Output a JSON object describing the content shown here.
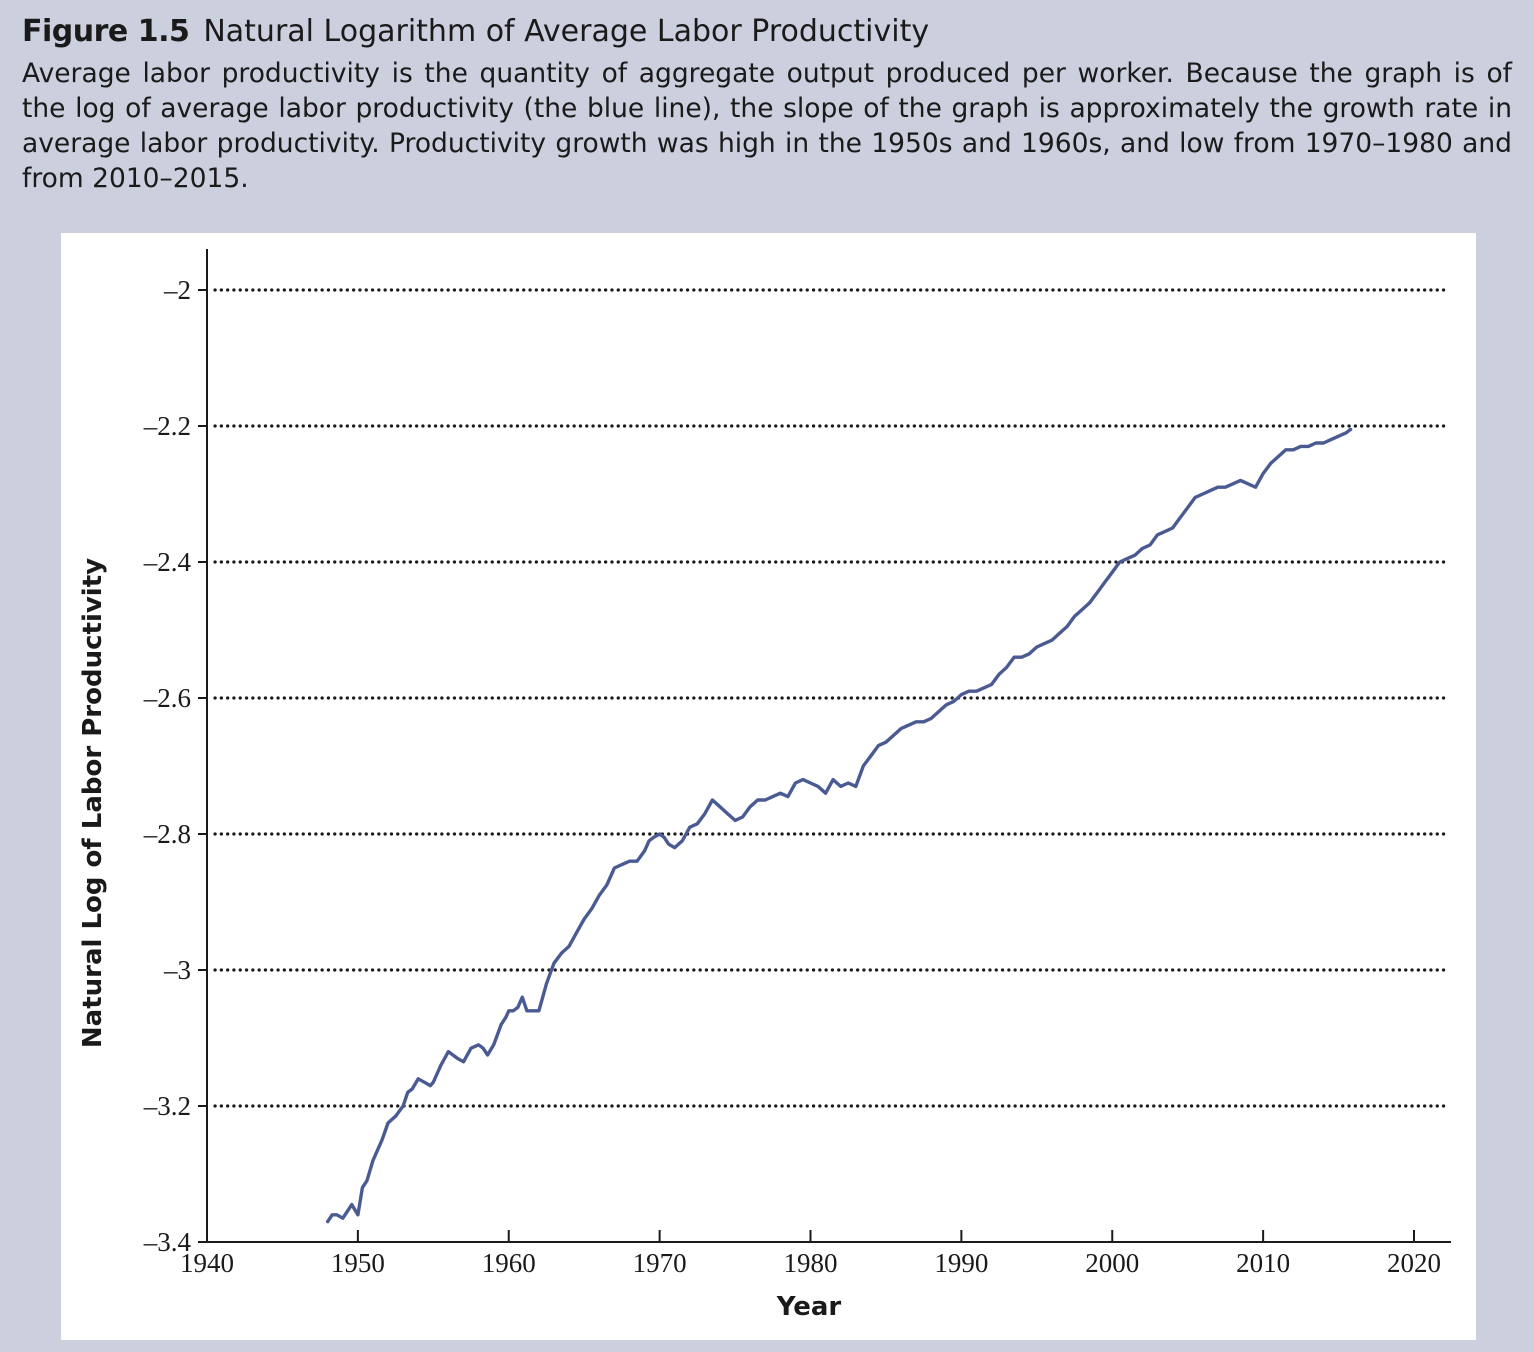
{
  "figure": {
    "label": "Figure 1.5",
    "title": "Natural Logarithm of Average Labor Productivity",
    "caption": "Average labor productivity is the quantity of aggregate output produced per worker. Because the graph is of the log of average labor productivity (the blue line), the slope of the graph is approximately the growth rate in average labor productivity. Productivity growth was high in the 1950s and 1960s, and low from 1970–1980 and from 2010–2015."
  },
  "chart_data": {
    "type": "line",
    "xlabel": "Year",
    "ylabel": "Natural Log of Labor Productivity",
    "xlim": [
      1940,
      2020
    ],
    "ylim": [
      -3.4,
      -1.95
    ],
    "xticks": [
      1940,
      1950,
      1960,
      1970,
      1980,
      1990,
      2000,
      2010,
      2020
    ],
    "xtick_labels": [
      "1940",
      "1950",
      "1960",
      "1970",
      "1980",
      "1990",
      "2000",
      "2010",
      "2020"
    ],
    "yticks": [
      -2,
      -2.2,
      -2.4,
      -2.6,
      -2.8,
      -3,
      -3.2,
      -3.4
    ],
    "ytick_labels": [
      "–2",
      "–2.2",
      "–2.4",
      "–2.6",
      "–2.8",
      "–3",
      "–3.2",
      "–3.4"
    ],
    "grid": "horizontal dotted",
    "line_color": "#4a5a92",
    "x": [
      1948.0,
      1948.3,
      1948.6,
      1949.0,
      1949.3,
      1949.6,
      1950.0,
      1950.3,
      1950.6,
      1951.0,
      1951.3,
      1951.6,
      1952.0,
      1952.5,
      1953.0,
      1953.3,
      1953.6,
      1954.0,
      1954.4,
      1954.8,
      1955.0,
      1955.5,
      1956.0,
      1956.3,
      1956.6,
      1957.0,
      1957.5,
      1958.0,
      1958.3,
      1958.6,
      1959.0,
      1959.5,
      1959.8,
      1960.0,
      1960.3,
      1960.6,
      1960.9,
      1961.2,
      1961.6,
      1962.0,
      1962.5,
      1963.0,
      1963.5,
      1964.0,
      1964.5,
      1965.0,
      1965.5,
      1966.0,
      1966.5,
      1967.0,
      1967.5,
      1968.0,
      1968.5,
      1969.0,
      1969.3,
      1969.6,
      1970.0,
      1970.3,
      1970.6,
      1971.0,
      1971.5,
      1972.0,
      1972.5,
      1973.0,
      1973.5,
      1974.0,
      1974.5,
      1975.0,
      1975.5,
      1976.0,
      1976.5,
      1977.0,
      1977.5,
      1978.0,
      1978.5,
      1979.0,
      1979.5,
      1980.0,
      1980.5,
      1981.0,
      1981.5,
      1982.0,
      1982.5,
      1983.0,
      1983.5,
      1984.0,
      1984.5,
      1985.0,
      1985.5,
      1986.0,
      1986.5,
      1987.0,
      1987.5,
      1988.0,
      1988.5,
      1989.0,
      1989.5,
      1990.0,
      1990.5,
      1991.0,
      1991.5,
      1992.0,
      1992.5,
      1993.0,
      1993.5,
      1994.0,
      1994.5,
      1995.0,
      1995.5,
      1996.0,
      1996.5,
      1997.0,
      1997.5,
      1998.0,
      1998.5,
      1999.0,
      1999.5,
      2000.0,
      2000.5,
      2001.0,
      2001.5,
      2002.0,
      2002.5,
      2003.0,
      2003.5,
      2004.0,
      2004.5,
      2005.0,
      2005.5,
      2006.0,
      2006.5,
      2007.0,
      2007.5,
      2008.0,
      2008.5,
      2009.0,
      2009.5,
      2010.0,
      2010.5,
      2011.0,
      2011.5,
      2012.0,
      2012.5,
      2013.0,
      2013.5,
      2014.0,
      2014.5,
      2015.0,
      2015.5,
      2015.8
    ],
    "y": [
      -3.37,
      -3.36,
      -3.36,
      -3.365,
      -3.355,
      -3.345,
      -3.36,
      -3.32,
      -3.31,
      -3.28,
      -3.265,
      -3.25,
      -3.225,
      -3.215,
      -3.2,
      -3.18,
      -3.175,
      -3.16,
      -3.165,
      -3.17,
      -3.165,
      -3.14,
      -3.12,
      -3.125,
      -3.13,
      -3.135,
      -3.115,
      -3.11,
      -3.115,
      -3.125,
      -3.11,
      -3.08,
      -3.07,
      -3.06,
      -3.06,
      -3.055,
      -3.04,
      -3.06,
      -3.06,
      -3.06,
      -3.02,
      -2.99,
      -2.975,
      -2.965,
      -2.945,
      -2.925,
      -2.91,
      -2.89,
      -2.875,
      -2.85,
      -2.845,
      -2.84,
      -2.84,
      -2.825,
      -2.81,
      -2.805,
      -2.8,
      -2.805,
      -2.815,
      -2.82,
      -2.81,
      -2.79,
      -2.785,
      -2.77,
      -2.75,
      -2.76,
      -2.77,
      -2.78,
      -2.775,
      -2.76,
      -2.75,
      -2.75,
      -2.745,
      -2.74,
      -2.745,
      -2.725,
      -2.72,
      -2.725,
      -2.73,
      -2.74,
      -2.72,
      -2.73,
      -2.725,
      -2.73,
      -2.7,
      -2.685,
      -2.67,
      -2.665,
      -2.655,
      -2.645,
      -2.64,
      -2.635,
      -2.635,
      -2.63,
      -2.62,
      -2.61,
      -2.605,
      -2.595,
      -2.59,
      -2.59,
      -2.585,
      -2.58,
      -2.565,
      -2.555,
      -2.54,
      -2.54,
      -2.535,
      -2.525,
      -2.52,
      -2.515,
      -2.505,
      -2.495,
      -2.48,
      -2.47,
      -2.46,
      -2.445,
      -2.43,
      -2.415,
      -2.4,
      -2.395,
      -2.39,
      -2.38,
      -2.375,
      -2.36,
      -2.355,
      -2.35,
      -2.335,
      -2.32,
      -2.305,
      -2.3,
      -2.295,
      -2.29,
      -2.29,
      -2.285,
      -2.28,
      -2.285,
      -2.29,
      -2.27,
      -2.255,
      -2.245,
      -2.235,
      -2.235,
      -2.23,
      -2.23,
      -2.225,
      -2.225,
      -2.22,
      -2.215,
      -2.21,
      -2.205
    ]
  }
}
